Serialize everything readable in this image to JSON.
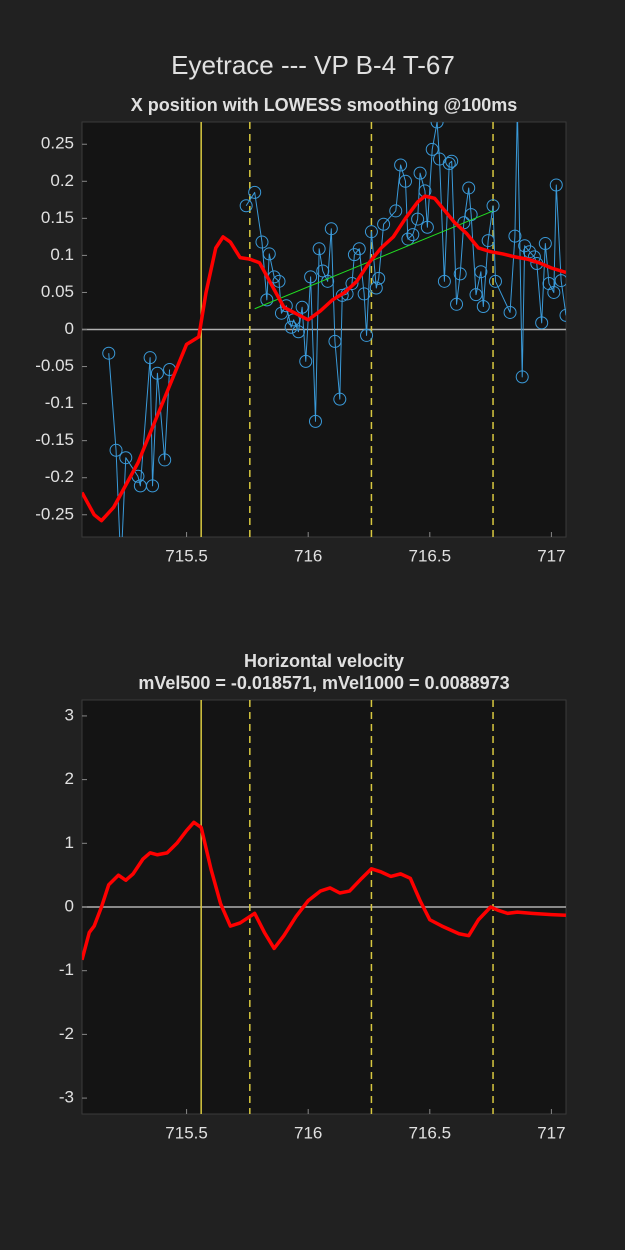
{
  "title": "Eyetrace --- VP B-4 T-67",
  "chart_data": [
    {
      "type": "line",
      "title": "X position with LOWESS smoothing @100ms",
      "xlim": [
        715.07,
        717.06
      ],
      "xticks": [
        715.5,
        716,
        716.5,
        717
      ],
      "ylim": [
        -0.28,
        0.28
      ],
      "yticks": [
        -0.25,
        -0.2,
        -0.15,
        -0.1,
        -0.05,
        0,
        0.05,
        0.1,
        0.15,
        0.2,
        0.25
      ],
      "hline": 0,
      "hline_color": "#b0b0b0",
      "vlines": [
        {
          "value": 715.56,
          "style": "solid"
        },
        {
          "value": 715.76,
          "style": "dashed"
        },
        {
          "value": 716.26,
          "style": "dashed"
        },
        {
          "value": 716.76,
          "style": "dashed"
        }
      ],
      "vline_color": "#d8c840",
      "series": [
        {
          "color": "#3a9ad9",
          "marker": "circle",
          "width": 1,
          "x": [
            715.18,
            715.21,
            715.23,
            715.25,
            715.3,
            715.31,
            715.35,
            715.36,
            715.38,
            715.41,
            715.43,
            null,
            715.745,
            715.78,
            715.81,
            715.83,
            715.84,
            715.86,
            715.88,
            715.89,
            715.91,
            715.93,
            715.94,
            715.96,
            715.975,
            715.99,
            716.01,
            716.03,
            716.045,
            716.06,
            716.08,
            716.095,
            716.11,
            716.13,
            716.14,
            716.16,
            716.18,
            716.19,
            716.21,
            716.23,
            716.24,
            716.26,
            716.28,
            716.29,
            716.31,
            716.36,
            716.38,
            716.4,
            716.41,
            716.43,
            716.45,
            716.46,
            716.48,
            716.49,
            716.51,
            716.53,
            716.54,
            716.56,
            716.58,
            716.59,
            716.61,
            716.625,
            716.64,
            716.66,
            716.67,
            716.69,
            716.71,
            716.72,
            716.74,
            716.76,
            716.77,
            716.83,
            716.85,
            716.86,
            716.88,
            716.89,
            716.91,
            716.93,
            716.94,
            716.96,
            716.975,
            716.99,
            717.01,
            717.02,
            717.04,
            717.06
          ],
          "values": [
            -0.032,
            -0.163,
            -0.32,
            -0.173,
            -0.198,
            -0.211,
            -0.038,
            -0.211,
            -0.059,
            -0.176,
            -0.054,
            null,
            0.167,
            0.185,
            0.118,
            0.04,
            0.102,
            0.071,
            0.065,
            0.022,
            0.032,
            0.003,
            0.013,
            -0.003,
            0.03,
            -0.043,
            0.071,
            -0.124,
            0.109,
            0.079,
            0.065,
            0.136,
            -0.016,
            -0.094,
            0.046,
            0.048,
            0.062,
            0.101,
            0.109,
            0.048,
            -0.008,
            0.132,
            0.056,
            0.069,
            0.142,
            0.16,
            0.222,
            0.2,
            0.122,
            0.128,
            0.149,
            0.211,
            0.187,
            0.138,
            0.243,
            0.28,
            0.23,
            0.065,
            0.224,
            0.227,
            0.034,
            0.075,
            0.144,
            0.191,
            0.155,
            0.047,
            0.078,
            0.031,
            0.12,
            0.167,
            0.065,
            0.023,
            0.126,
            0.3,
            -0.064,
            0.113,
            0.105,
            0.098,
            0.089,
            0.009,
            0.116,
            0.062,
            0.05,
            0.195,
            0.066,
            0.019
          ]
        },
        {
          "color": "#22dd22",
          "width": 1,
          "x": [
            715.78,
            716.76
          ],
          "values": [
            0.028,
            0.16
          ]
        },
        {
          "color": "#ff0000",
          "width": 3.5,
          "x": [
            715.07,
            715.12,
            715.15,
            715.2,
            715.25,
            715.3,
            715.35,
            715.4,
            715.45,
            715.5,
            715.55,
            715.58,
            715.62,
            715.65,
            715.68,
            715.72,
            715.76,
            715.8,
            715.85,
            715.9,
            716.0,
            716.05,
            716.1,
            716.15,
            716.2,
            716.25,
            716.3,
            716.35,
            716.4,
            716.45,
            716.48,
            716.52,
            716.55,
            716.6,
            716.65,
            716.7,
            716.75,
            716.8,
            716.85,
            716.9,
            716.95,
            717.0,
            717.06
          ],
          "values": [
            -0.22,
            -0.25,
            -0.258,
            -0.24,
            -0.21,
            -0.18,
            -0.14,
            -0.1,
            -0.06,
            -0.02,
            -0.01,
            0.05,
            0.11,
            0.125,
            0.118,
            0.097,
            0.095,
            0.09,
            0.06,
            0.03,
            0.013,
            0.025,
            0.04,
            0.05,
            0.065,
            0.09,
            0.11,
            0.125,
            0.15,
            0.172,
            0.18,
            0.177,
            0.165,
            0.145,
            0.13,
            0.11,
            0.105,
            0.102,
            0.098,
            0.095,
            0.09,
            0.083,
            0.077
          ]
        }
      ]
    },
    {
      "type": "line",
      "title": "Horizontal velocity",
      "subtitle": "mVel500 = -0.018571, mVel1000 = 0.0088973",
      "xlim": [
        715.07,
        717.06
      ],
      "xticks": [
        715.5,
        716,
        716.5,
        717
      ],
      "ylim": [
        -3.25,
        3.25
      ],
      "yticks": [
        -3,
        -2,
        -1,
        0,
        1,
        2,
        3
      ],
      "hline": 0,
      "hline_color": "#b0b0b0",
      "vlines": [
        {
          "value": 715.56,
          "style": "solid"
        },
        {
          "value": 715.76,
          "style": "dashed"
        },
        {
          "value": 716.26,
          "style": "dashed"
        },
        {
          "value": 716.76,
          "style": "dashed"
        }
      ],
      "vline_color": "#d8c840",
      "series": [
        {
          "color": "#ff0000",
          "width": 3.5,
          "x": [
            715.07,
            715.1,
            715.12,
            715.15,
            715.18,
            715.22,
            715.25,
            715.28,
            715.32,
            715.35,
            715.38,
            715.42,
            715.46,
            715.5,
            715.53,
            715.56,
            715.6,
            715.64,
            715.68,
            715.72,
            715.76,
            715.78,
            715.82,
            715.86,
            715.9,
            715.95,
            716.0,
            716.05,
            716.09,
            716.13,
            716.17,
            716.22,
            716.26,
            716.3,
            716.34,
            716.38,
            716.42,
            716.46,
            716.5,
            716.55,
            716.62,
            716.66,
            716.7,
            716.75,
            716.78,
            716.82,
            716.86,
            716.92,
            717.0,
            717.06
          ],
          "values": [
            -0.83,
            -0.4,
            -0.3,
            0,
            0.35,
            0.5,
            0.42,
            0.52,
            0.75,
            0.85,
            0.82,
            0.85,
            1,
            1.2,
            1.33,
            1.25,
            0.6,
            0.05,
            -0.3,
            -0.25,
            -0.15,
            -0.1,
            -0.4,
            -0.65,
            -0.45,
            -0.15,
            0.1,
            0.25,
            0.3,
            0.22,
            0.25,
            0.45,
            0.6,
            0.55,
            0.48,
            0.52,
            0.45,
            0.1,
            -0.2,
            -0.3,
            -0.42,
            -0.45,
            -0.2,
            0,
            -0.05,
            -0.1,
            -0.08,
            -0.1,
            -0.12,
            -0.13
          ]
        }
      ]
    }
  ]
}
